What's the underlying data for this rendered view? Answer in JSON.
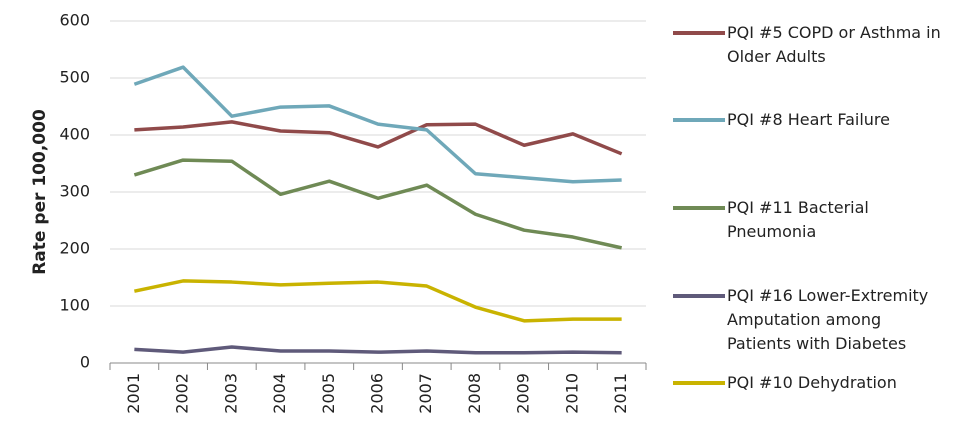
{
  "chart_data": {
    "type": "line",
    "y_label": "Rate per 100,000",
    "categories": [
      "2001",
      "2002",
      "2003",
      "2004",
      "2005",
      "2006",
      "2007",
      "2008",
      "2009",
      "2010",
      "2011"
    ],
    "series": [
      {
        "name": "PQI #5 COPD or Asthma in Older Adults",
        "color": "#904a4a",
        "values": [
          409,
          414,
          423,
          407,
          404,
          379,
          418,
          419,
          382,
          402,
          367
        ]
      },
      {
        "name": "PQI #8 Heart Failure",
        "color": "#6fa8b9",
        "values": [
          489,
          519,
          433,
          449,
          451,
          419,
          409,
          332,
          325,
          318,
          321
        ]
      },
      {
        "name": "PQI #11 Bacterial Pneumonia",
        "color": "#6f8a55",
        "values": [
          330,
          356,
          354,
          296,
          319,
          289,
          312,
          261,
          233,
          221,
          202
        ]
      },
      {
        "name": "PQI #16 Lower-Extremity Amputation among Patients with Diabetes",
        "color": "#5f5a7a",
        "values": [
          24,
          19,
          28,
          21,
          21,
          19,
          21,
          18,
          18,
          19,
          18
        ]
      },
      {
        "name": "PQI #10 Dehydration",
        "color": "#c9b300",
        "values": [
          126,
          144,
          142,
          137,
          140,
          142,
          135,
          98,
          74,
          77,
          77
        ]
      }
    ],
    "ylim": [
      0,
      600
    ],
    "yticks": [
      0,
      100,
      200,
      300,
      400,
      500,
      600
    ],
    "grid": true,
    "legend": "right"
  }
}
